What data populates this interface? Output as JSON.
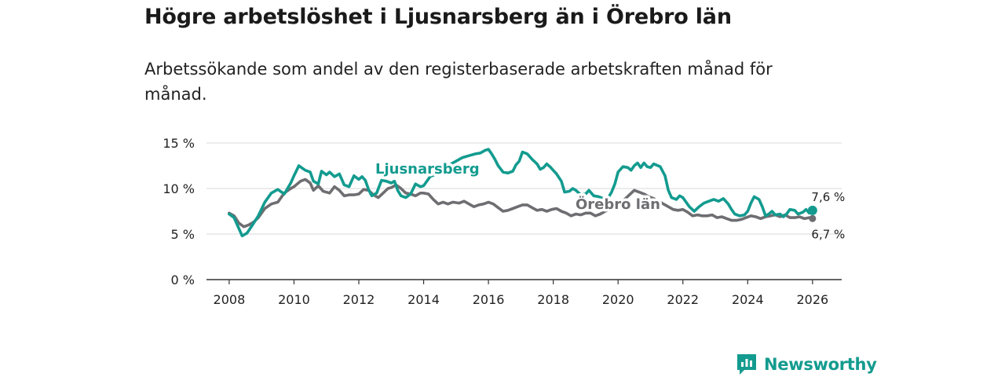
{
  "title": "Högre arbetslöshet i Ljusnarsberg än i Örebro län",
  "subtitle": "Arbetssökande som andel av den registerbaserade arbetskraften månad för månad.",
  "brand": "Newsworthy",
  "colors": {
    "ljusnarsberg": "#139b8f",
    "orebro": "#6e6e72",
    "brand": "#139b8f"
  },
  "chart_data": {
    "type": "line",
    "ylim": [
      0,
      15
    ],
    "yticks": [
      0,
      5,
      10,
      15
    ],
    "yticklabels": [
      "0 %",
      "5 %",
      "10 %",
      "15 %"
    ],
    "xlim": [
      2007.3,
      2026.9
    ],
    "xticks": [
      2008,
      2010,
      2012,
      2014,
      2016,
      2018,
      2020,
      2022,
      2024,
      2026
    ],
    "xticklabels": [
      "2008",
      "2010",
      "2012",
      "2014",
      "2016",
      "2018",
      "2020",
      "2022",
      "2024",
      "2026"
    ],
    "series": [
      {
        "name": "Ljusnarsberg",
        "label": "Ljusnarsberg",
        "end_label": "7,6 %",
        "points": [
          [
            2008.0,
            7.2
          ],
          [
            2008.15,
            6.8
          ],
          [
            2008.3,
            5.6
          ],
          [
            2008.4,
            4.8
          ],
          [
            2008.55,
            5.1
          ],
          [
            2008.7,
            5.9
          ],
          [
            2008.9,
            7.0
          ],
          [
            2009.1,
            8.5
          ],
          [
            2009.3,
            9.5
          ],
          [
            2009.5,
            9.9
          ],
          [
            2009.7,
            9.4
          ],
          [
            2009.9,
            10.6
          ],
          [
            2010.0,
            11.4
          ],
          [
            2010.15,
            12.5
          ],
          [
            2010.35,
            12.0
          ],
          [
            2010.5,
            11.8
          ],
          [
            2010.6,
            10.8
          ],
          [
            2010.75,
            10.5
          ],
          [
            2010.85,
            11.9
          ],
          [
            2011.0,
            11.5
          ],
          [
            2011.1,
            11.8
          ],
          [
            2011.25,
            11.3
          ],
          [
            2011.4,
            11.6
          ],
          [
            2011.55,
            10.4
          ],
          [
            2011.7,
            10.2
          ],
          [
            2011.85,
            11.4
          ],
          [
            2012.0,
            11.0
          ],
          [
            2012.1,
            11.3
          ],
          [
            2012.2,
            10.9
          ],
          [
            2012.3,
            9.9
          ],
          [
            2012.4,
            9.2
          ],
          [
            2012.55,
            9.5
          ],
          [
            2012.7,
            10.9
          ],
          [
            2012.85,
            10.8
          ],
          [
            2013.0,
            10.6
          ],
          [
            2013.1,
            10.8
          ],
          [
            2013.2,
            9.8
          ],
          [
            2013.3,
            9.2
          ],
          [
            2013.45,
            9.0
          ],
          [
            2013.6,
            9.4
          ],
          [
            2013.75,
            10.5
          ],
          [
            2013.9,
            10.2
          ],
          [
            2014.0,
            10.3
          ],
          [
            2014.2,
            11.3
          ],
          [
            2014.4,
            11.6
          ],
          [
            2014.6,
            12.1
          ],
          [
            2014.8,
            12.6
          ],
          [
            2015.0,
            13.0
          ],
          [
            2015.2,
            13.4
          ],
          [
            2015.4,
            13.6
          ],
          [
            2015.6,
            13.8
          ],
          [
            2015.75,
            13.9
          ],
          [
            2015.9,
            14.2
          ],
          [
            2016.0,
            14.3
          ],
          [
            2016.1,
            13.8
          ],
          [
            2016.2,
            13.2
          ],
          [
            2016.3,
            12.5
          ],
          [
            2016.45,
            11.8
          ],
          [
            2016.6,
            11.7
          ],
          [
            2016.75,
            11.9
          ],
          [
            2016.85,
            12.6
          ],
          [
            2016.95,
            13.0
          ],
          [
            2017.05,
            14.0
          ],
          [
            2017.2,
            13.8
          ],
          [
            2017.35,
            13.2
          ],
          [
            2017.5,
            12.7
          ],
          [
            2017.6,
            12.1
          ],
          [
            2017.7,
            12.3
          ],
          [
            2017.8,
            12.7
          ],
          [
            2017.9,
            12.4
          ],
          [
            2018.0,
            12.0
          ],
          [
            2018.1,
            11.6
          ],
          [
            2018.25,
            10.8
          ],
          [
            2018.35,
            9.6
          ],
          [
            2018.5,
            9.7
          ],
          [
            2018.6,
            10.0
          ],
          [
            2018.7,
            9.8
          ],
          [
            2018.85,
            9.3
          ],
          [
            2019.0,
            9.4
          ],
          [
            2019.1,
            9.8
          ],
          [
            2019.25,
            9.2
          ],
          [
            2019.4,
            9.1
          ],
          [
            2019.55,
            8.9
          ],
          [
            2019.7,
            9.0
          ],
          [
            2019.8,
            9.6
          ],
          [
            2019.9,
            10.5
          ],
          [
            2020.0,
            11.8
          ],
          [
            2020.15,
            12.4
          ],
          [
            2020.3,
            12.3
          ],
          [
            2020.4,
            12.0
          ],
          [
            2020.5,
            12.5
          ],
          [
            2020.6,
            12.8
          ],
          [
            2020.7,
            12.3
          ],
          [
            2020.8,
            12.8
          ],
          [
            2020.9,
            12.4
          ],
          [
            2021.0,
            12.3
          ],
          [
            2021.1,
            12.7
          ],
          [
            2021.3,
            12.4
          ],
          [
            2021.45,
            11.4
          ],
          [
            2021.55,
            9.8
          ],
          [
            2021.65,
            9.0
          ],
          [
            2021.8,
            8.8
          ],
          [
            2021.9,
            9.2
          ],
          [
            2022.0,
            9.0
          ],
          [
            2022.1,
            8.5
          ],
          [
            2022.2,
            8.0
          ],
          [
            2022.35,
            7.5
          ],
          [
            2022.5,
            8.0
          ],
          [
            2022.65,
            8.4
          ],
          [
            2022.8,
            8.6
          ],
          [
            2022.95,
            8.8
          ],
          [
            2023.1,
            8.6
          ],
          [
            2023.25,
            8.9
          ],
          [
            2023.4,
            8.3
          ],
          [
            2023.5,
            7.7
          ],
          [
            2023.6,
            7.2
          ],
          [
            2023.75,
            7.0
          ],
          [
            2023.9,
            7.1
          ],
          [
            2024.0,
            7.5
          ],
          [
            2024.1,
            8.4
          ],
          [
            2024.2,
            9.1
          ],
          [
            2024.35,
            8.8
          ],
          [
            2024.45,
            8.0
          ],
          [
            2024.55,
            7.0
          ],
          [
            2024.65,
            7.2
          ],
          [
            2024.75,
            7.5
          ],
          [
            2024.85,
            7.1
          ],
          [
            2025.0,
            7.2
          ],
          [
            2025.1,
            6.9
          ],
          [
            2025.2,
            7.2
          ],
          [
            2025.3,
            7.7
          ],
          [
            2025.45,
            7.6
          ],
          [
            2025.55,
            7.2
          ],
          [
            2025.7,
            7.4
          ],
          [
            2025.8,
            7.7
          ],
          [
            2025.9,
            7.3
          ],
          [
            2026.0,
            7.6
          ]
        ]
      },
      {
        "name": "Örebro län",
        "label": "Örebro län",
        "end_label": "6,7 %",
        "points": [
          [
            2008.0,
            7.3
          ],
          [
            2008.15,
            7.0
          ],
          [
            2008.3,
            6.2
          ],
          [
            2008.45,
            5.8
          ],
          [
            2008.6,
            6.0
          ],
          [
            2008.75,
            6.3
          ],
          [
            2008.9,
            6.8
          ],
          [
            2009.1,
            7.8
          ],
          [
            2009.3,
            8.3
          ],
          [
            2009.5,
            8.5
          ],
          [
            2009.7,
            9.5
          ],
          [
            2009.9,
            10.0
          ],
          [
            2010.0,
            10.2
          ],
          [
            2010.2,
            10.8
          ],
          [
            2010.35,
            11.0
          ],
          [
            2010.5,
            10.6
          ],
          [
            2010.6,
            9.8
          ],
          [
            2010.75,
            10.3
          ],
          [
            2010.9,
            9.7
          ],
          [
            2011.1,
            9.5
          ],
          [
            2011.25,
            10.2
          ],
          [
            2011.4,
            9.8
          ],
          [
            2011.55,
            9.2
          ],
          [
            2011.7,
            9.3
          ],
          [
            2011.85,
            9.3
          ],
          [
            2012.0,
            9.4
          ],
          [
            2012.15,
            9.9
          ],
          [
            2012.3,
            9.8
          ],
          [
            2012.45,
            9.3
          ],
          [
            2012.6,
            9.0
          ],
          [
            2012.75,
            9.5
          ],
          [
            2012.9,
            10.0
          ],
          [
            2013.0,
            10.1
          ],
          [
            2013.15,
            10.4
          ],
          [
            2013.3,
            10.0
          ],
          [
            2013.45,
            9.5
          ],
          [
            2013.6,
            9.4
          ],
          [
            2013.75,
            9.2
          ],
          [
            2013.9,
            9.5
          ],
          [
            2014.0,
            9.5
          ],
          [
            2014.15,
            9.4
          ],
          [
            2014.3,
            8.8
          ],
          [
            2014.45,
            8.3
          ],
          [
            2014.6,
            8.5
          ],
          [
            2014.75,
            8.3
          ],
          [
            2014.9,
            8.5
          ],
          [
            2015.1,
            8.4
          ],
          [
            2015.25,
            8.6
          ],
          [
            2015.4,
            8.3
          ],
          [
            2015.55,
            8.0
          ],
          [
            2015.7,
            8.2
          ],
          [
            2015.85,
            8.3
          ],
          [
            2016.0,
            8.5
          ],
          [
            2016.15,
            8.3
          ],
          [
            2016.3,
            7.9
          ],
          [
            2016.45,
            7.5
          ],
          [
            2016.6,
            7.6
          ],
          [
            2016.75,
            7.8
          ],
          [
            2016.9,
            8.0
          ],
          [
            2017.05,
            8.2
          ],
          [
            2017.2,
            8.2
          ],
          [
            2017.35,
            7.9
          ],
          [
            2017.5,
            7.6
          ],
          [
            2017.65,
            7.7
          ],
          [
            2017.8,
            7.5
          ],
          [
            2017.95,
            7.7
          ],
          [
            2018.1,
            7.8
          ],
          [
            2018.25,
            7.5
          ],
          [
            2018.4,
            7.3
          ],
          [
            2018.55,
            7.0
          ],
          [
            2018.7,
            7.2
          ],
          [
            2018.85,
            7.1
          ],
          [
            2019.0,
            7.3
          ],
          [
            2019.15,
            7.3
          ],
          [
            2019.3,
            7.0
          ],
          [
            2019.45,
            7.2
          ],
          [
            2019.6,
            7.5
          ],
          [
            2019.75,
            7.7
          ],
          [
            2019.9,
            7.9
          ],
          [
            2020.05,
            8.3
          ],
          [
            2020.2,
            8.8
          ],
          [
            2020.35,
            9.3
          ],
          [
            2020.5,
            9.8
          ],
          [
            2020.65,
            9.6
          ],
          [
            2020.8,
            9.4
          ],
          [
            2020.95,
            9.1
          ],
          [
            2021.1,
            8.9
          ],
          [
            2021.25,
            8.6
          ],
          [
            2021.4,
            8.3
          ],
          [
            2021.55,
            8.0
          ],
          [
            2021.7,
            7.7
          ],
          [
            2021.85,
            7.6
          ],
          [
            2022.0,
            7.7
          ],
          [
            2022.15,
            7.4
          ],
          [
            2022.3,
            7.0
          ],
          [
            2022.45,
            7.1
          ],
          [
            2022.6,
            7.0
          ],
          [
            2022.75,
            7.0
          ],
          [
            2022.9,
            7.1
          ],
          [
            2023.05,
            6.8
          ],
          [
            2023.2,
            6.9
          ],
          [
            2023.35,
            6.7
          ],
          [
            2023.5,
            6.5
          ],
          [
            2023.65,
            6.5
          ],
          [
            2023.8,
            6.6
          ],
          [
            2023.95,
            6.8
          ],
          [
            2024.1,
            7.0
          ],
          [
            2024.25,
            6.9
          ],
          [
            2024.4,
            6.7
          ],
          [
            2024.55,
            6.9
          ],
          [
            2024.7,
            7.0
          ],
          [
            2024.85,
            7.1
          ],
          [
            2025.0,
            6.9
          ],
          [
            2025.15,
            7.1
          ],
          [
            2025.3,
            6.8
          ],
          [
            2025.45,
            6.8
          ],
          [
            2025.6,
            6.9
          ],
          [
            2025.75,
            6.7
          ],
          [
            2025.9,
            6.8
          ],
          [
            2026.0,
            6.7
          ]
        ]
      }
    ]
  }
}
